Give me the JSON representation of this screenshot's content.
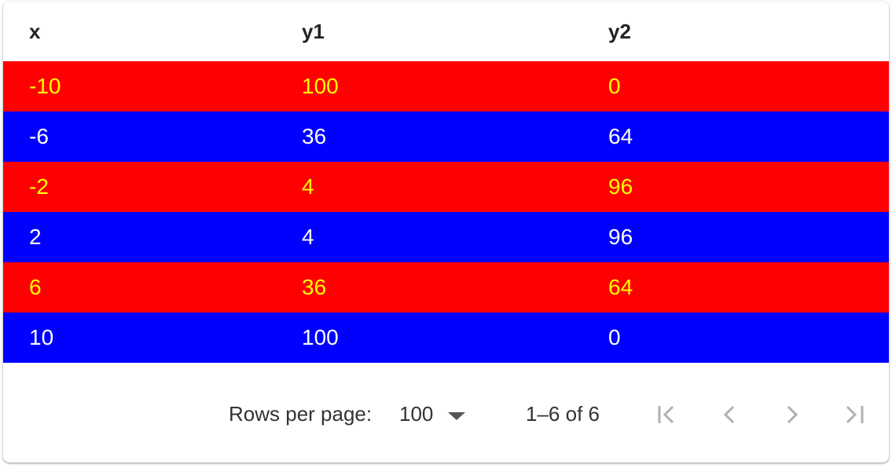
{
  "table": {
    "columns": [
      "x",
      "y1",
      "y2"
    ],
    "rows": [
      {
        "x": "-10",
        "y1": "100",
        "y2": "0",
        "style": "red"
      },
      {
        "x": "-6",
        "y1": "36",
        "y2": "64",
        "style": "blue"
      },
      {
        "x": "-2",
        "y1": "4",
        "y2": "96",
        "style": "red"
      },
      {
        "x": "2",
        "y1": "4",
        "y2": "96",
        "style": "blue"
      },
      {
        "x": "6",
        "y1": "36",
        "y2": "64",
        "style": "red"
      },
      {
        "x": "10",
        "y1": "100",
        "y2": "0",
        "style": "blue"
      }
    ]
  },
  "pagination": {
    "rows_per_page_label": "Rows per page:",
    "rows_per_page_value": "100",
    "range_text": "1–6 of 6",
    "icons": [
      "first-page-icon",
      "previous-page-icon",
      "next-page-icon",
      "last-page-icon"
    ]
  },
  "colors": {
    "red_row_bg": "#ff0000",
    "red_row_text": "#ffff00",
    "blue_row_bg": "#0000ff",
    "blue_row_text": "#ffffff"
  }
}
